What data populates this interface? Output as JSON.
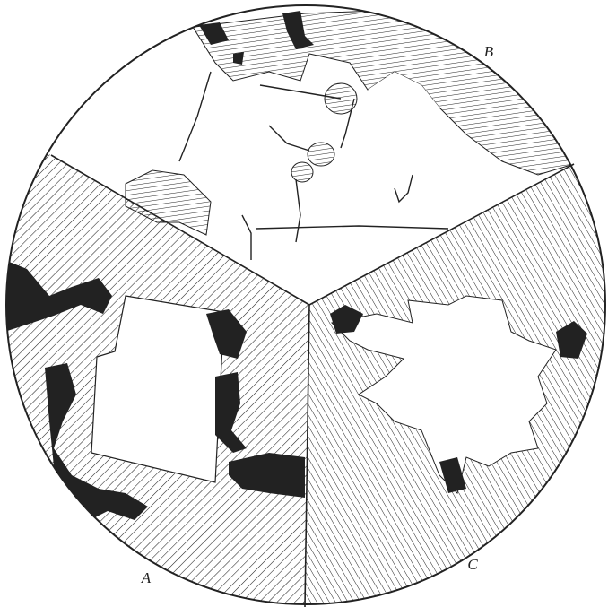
{
  "sectors": [
    {
      "label": "A"
    },
    {
      "label": "B"
    },
    {
      "label": "C"
    }
  ]
}
